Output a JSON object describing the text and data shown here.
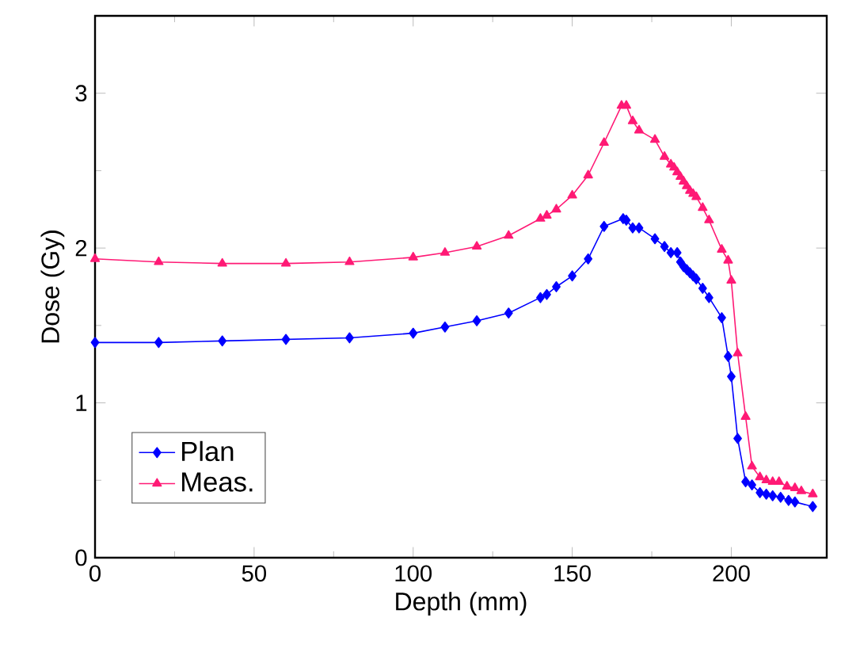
{
  "chart_data": {
    "type": "line",
    "xlabel": "Depth (mm)",
    "ylabel": "Dose (Gy)",
    "xlim": [
      0,
      230
    ],
    "ylim": [
      0,
      3.5
    ],
    "xticks": [
      0,
      50,
      100,
      150,
      200
    ],
    "yticks": [
      0,
      1,
      2,
      3
    ],
    "grid": false,
    "legend": "bottom left",
    "series": [
      {
        "name": "Plan",
        "color": "#0000ff",
        "marker": "diamond",
        "x": [
          0,
          20,
          40,
          60,
          80,
          100,
          110,
          120,
          130,
          140,
          142,
          145,
          150,
          155,
          160,
          166,
          167,
          169,
          171,
          176,
          179,
          181,
          183,
          184,
          185,
          186,
          187,
          188,
          189,
          191,
          193,
          197,
          199,
          200,
          202,
          204.5,
          206.5,
          209,
          211,
          213,
          215.5,
          218,
          220,
          225.6
        ],
        "values": [
          1.39,
          1.39,
          1.4,
          1.41,
          1.42,
          1.45,
          1.49,
          1.53,
          1.58,
          1.68,
          1.7,
          1.75,
          1.82,
          1.93,
          2.14,
          2.19,
          2.18,
          2.13,
          2.13,
          2.06,
          2.01,
          1.97,
          1.97,
          1.91,
          1.88,
          1.86,
          1.84,
          1.82,
          1.8,
          1.74,
          1.68,
          1.55,
          1.3,
          1.17,
          0.77,
          0.49,
          0.47,
          0.42,
          0.41,
          0.4,
          0.39,
          0.37,
          0.36,
          0.33
        ]
      },
      {
        "name": "Meas.",
        "color": "#ff1a75",
        "marker": "triangle",
        "x": [
          0,
          20,
          40,
          60,
          80,
          100,
          110,
          120,
          130,
          140,
          142,
          145,
          150,
          155,
          160,
          165.5,
          167,
          169,
          171,
          176,
          179,
          181,
          182,
          183,
          184,
          185,
          186,
          187,
          188,
          189,
          191,
          193,
          197,
          199,
          200,
          202,
          204.5,
          206.5,
          209,
          211,
          213,
          215,
          217.5,
          220,
          222,
          225.6
        ],
        "values": [
          1.93,
          1.91,
          1.9,
          1.9,
          1.91,
          1.94,
          1.97,
          2.01,
          2.08,
          2.19,
          2.21,
          2.25,
          2.34,
          2.47,
          2.68,
          2.92,
          2.92,
          2.82,
          2.76,
          2.7,
          2.59,
          2.54,
          2.52,
          2.49,
          2.46,
          2.43,
          2.4,
          2.37,
          2.35,
          2.33,
          2.26,
          2.18,
          1.99,
          1.92,
          1.79,
          1.32,
          0.91,
          0.59,
          0.52,
          0.5,
          0.49,
          0.49,
          0.46,
          0.45,
          0.43,
          0.41
        ]
      }
    ]
  }
}
